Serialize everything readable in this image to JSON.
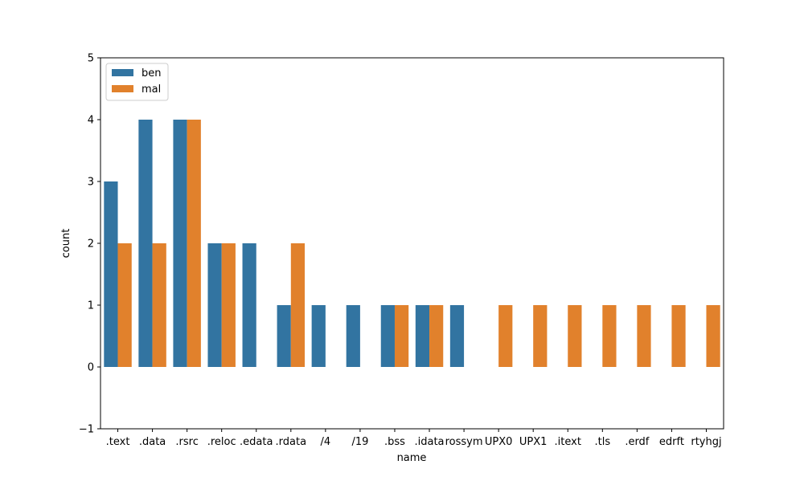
{
  "chart_data": {
    "type": "bar",
    "categories": [
      ".text",
      ".data",
      ".rsrc",
      ".reloc",
      ".edata",
      ".rdata",
      "/4",
      "/19",
      ".bss",
      ".idata",
      "rossym",
      "UPX0",
      "UPX1",
      ".itext",
      ".tls",
      ".erdf",
      "edrft",
      "rtyhgj"
    ],
    "series": [
      {
        "name": "ben",
        "color": "#3274a1",
        "values": [
          3,
          4,
          4,
          2,
          2,
          1,
          1,
          1,
          1,
          1,
          1,
          0,
          0,
          0,
          0,
          0,
          0,
          0
        ]
      },
      {
        "name": "mal",
        "color": "#e1812c",
        "values": [
          2,
          2,
          4,
          2,
          0,
          2,
          0,
          0,
          1,
          1,
          0,
          1,
          1,
          1,
          1,
          1,
          1,
          1
        ]
      }
    ],
    "xlabel": "name",
    "ylabel": "count",
    "ylim": [
      -1,
      5
    ],
    "yticks": [
      -1,
      0,
      1,
      2,
      3,
      4,
      5
    ],
    "grid": false,
    "legend_position": "top-left"
  }
}
